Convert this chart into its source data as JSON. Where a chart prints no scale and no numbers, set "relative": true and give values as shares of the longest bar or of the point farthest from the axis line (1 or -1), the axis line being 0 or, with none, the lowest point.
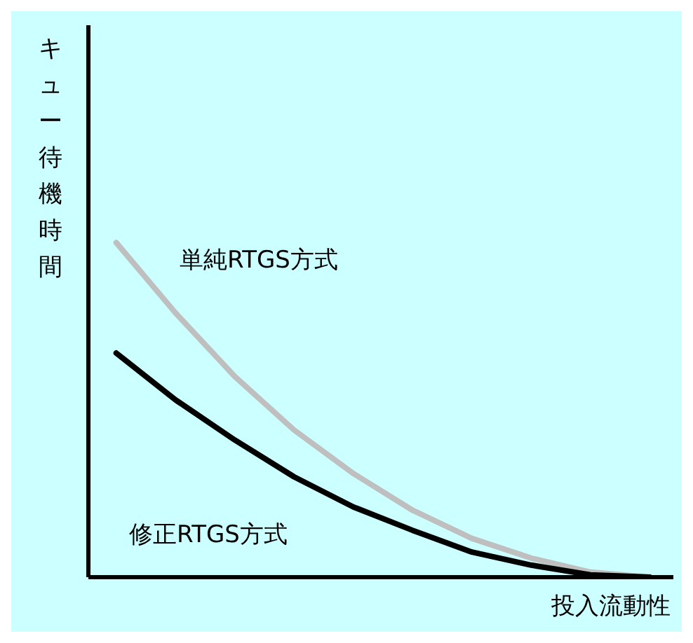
{
  "chart_data": {
    "type": "line",
    "relative": true,
    "xlabel": "投入流動性",
    "ylabel": "キュー待機時間",
    "categories": [
      null,
      null,
      null,
      null,
      null,
      null,
      null,
      null,
      null,
      null
    ],
    "series": [
      {
        "color": "#bfbfbf",
        "values": [
          1,
          0.79,
          0.6,
          0.44,
          0.31,
          0.2,
          0.116,
          0.057,
          0.015,
          0
        ]
      },
      {
        "color": "#000000",
        "values": [
          0.67,
          0.53,
          0.41,
          0.3,
          0.21,
          0.14,
          0.075,
          0.036,
          0.007,
          0
        ]
      }
    ],
    "annotations": [
      "単純RTGS方式",
      "修正RTGS方式"
    ],
    "grid": false,
    "legend": false,
    "marker": "none",
    "line_style": "solid"
  }
}
